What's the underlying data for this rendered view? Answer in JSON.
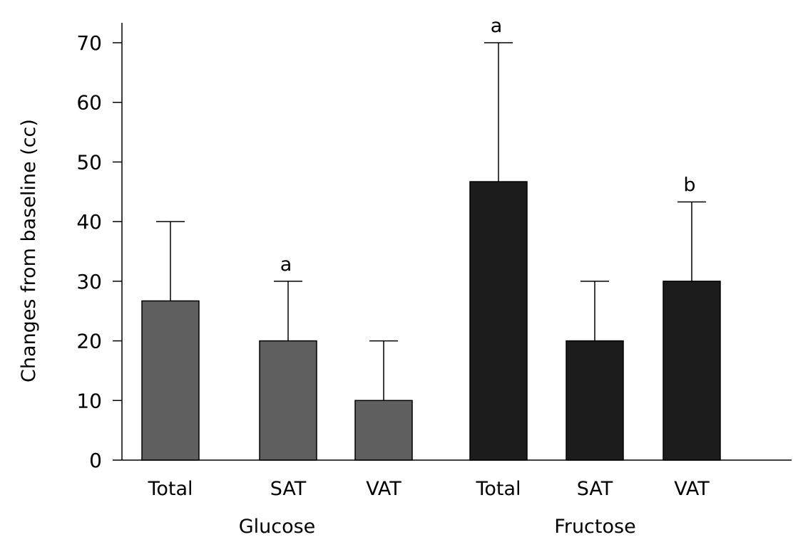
{
  "chart_data": {
    "type": "bar",
    "title": "",
    "xlabel": "",
    "ylabel": "Changes from baseline (cc)",
    "ylim": [
      0,
      73
    ],
    "yticks": [
      0,
      10,
      20,
      30,
      40,
      50,
      60,
      70
    ],
    "grid": false,
    "groups": [
      {
        "name": "Glucose",
        "color": "#5f5f5f",
        "bars": [
          {
            "category": "Total",
            "value": 26.7,
            "error": 13.3,
            "sig": ""
          },
          {
            "category": "SAT",
            "value": 20,
            "error": 10,
            "sig": "a"
          },
          {
            "category": "VAT",
            "value": 10,
            "error": 10,
            "sig": ""
          }
        ]
      },
      {
        "name": "Fructose",
        "color": "#1c1c1c",
        "bars": [
          {
            "category": "Total",
            "value": 46.7,
            "error": 23.3,
            "sig": "a"
          },
          {
            "category": "SAT",
            "value": 20,
            "error": 10,
            "sig": ""
          },
          {
            "category": "VAT",
            "value": 30,
            "error": 13.3,
            "sig": "b"
          }
        ]
      }
    ]
  }
}
